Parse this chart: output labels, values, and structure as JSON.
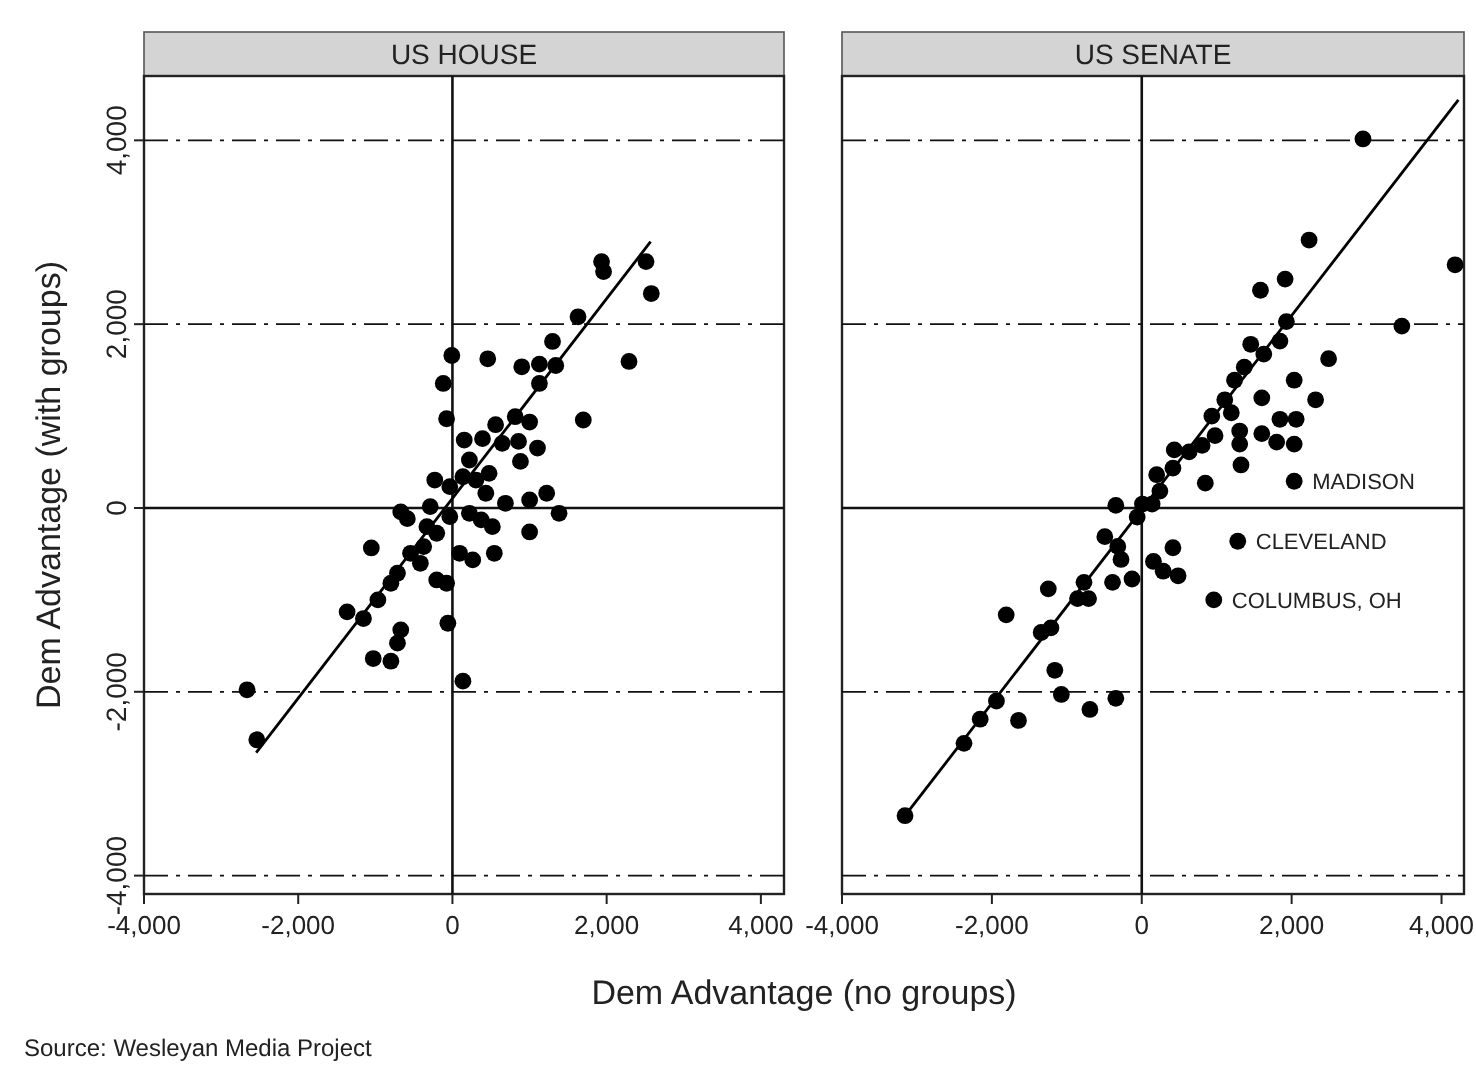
{
  "chart_data": [
    {
      "type": "scatter",
      "title": "US HOUSE",
      "xlabel": "Dem Advantage (no groups)",
      "ylabel": "Dem Advantage (with groups)",
      "xlim": [
        -4000,
        4300
      ],
      "ylim": [
        -4200,
        4700
      ],
      "xticks": [
        {
          "value": -4000,
          "label": "-4,000"
        },
        {
          "value": -2000,
          "label": "-2,000"
        },
        0,
        {
          "value": 2000,
          "label": "2,000"
        },
        {
          "value": 4000,
          "label": "4,000"
        }
      ],
      "yticks": [
        {
          "value": -4000,
          "label": "-4,000"
        },
        {
          "value": -2000,
          "label": "-2,000"
        },
        0,
        {
          "value": 2000,
          "label": "2,000"
        },
        {
          "value": 4000,
          "label": "4,000"
        }
      ],
      "marker": "circle",
      "ref_lines": [
        {
          "axis": "x",
          "value": 0
        },
        {
          "axis": "y",
          "value": 0
        },
        {
          "axis": "y",
          "value": 4000,
          "line_style": "dashed"
        },
        {
          "axis": "y",
          "value": 2000,
          "line_style": "dashed"
        },
        {
          "axis": "y",
          "value": -2000,
          "line_style": "dashed"
        },
        {
          "axis": "y",
          "value": -4000,
          "line_style": "dashed"
        }
      ],
      "annotations": [
        "Source: Wesleyan Media Project"
      ],
      "series": [
        {
          "color": "#000000",
          "x": [
            1934,
            1960,
            2511,
            2579,
            1629,
            2290,
            1298,
            -8,
            458,
            899,
            1128,
            1340,
            1128,
            -119,
            -76,
            1697,
            560,
            814,
            1001,
            857,
            882,
            1103,
            153,
            390,
            645,
            220,
            475,
            305,
            136,
            433,
            -229,
            -34,
            1222,
            1001,
            687,
            1383,
            1001,
            543,
            263,
            93,
            373,
            518,
            220,
            -34,
            -288,
            -670,
            -585,
            -331,
            -204,
            -373,
            -543,
            -416,
            -204,
            -76,
            -1052,
            -713,
            -798,
            -967,
            -1154,
            -1366,
            -670,
            -713,
            -1027,
            -798,
            -59,
            136,
            -2664,
            -2537
          ],
          "values": [
            2681,
            2572,
            2681,
            2333,
            2080,
            1594,
            1812,
            1659,
            1623,
            1536,
            1565,
            1550,
            1355,
            1355,
            971,
            957,
            906,
            993,
            935,
            724,
            507,
            652,
            739,
            754,
            703,
            522,
            377,
            304,
            340,
            160,
            304,
            232,
            160,
            87,
            51,
            -58,
            -261,
            -493,
            -565,
            -493,
            -130,
            -203,
            -58,
            -94,
            15,
            -43,
            -116,
            -203,
            -275,
            -420,
            -493,
            -602,
            -783,
            -819,
            -435,
            -710,
            -819,
            -1000,
            -1203,
            -1130,
            -1326,
            -1471,
            -1638,
            -1667,
            -1254,
            -1884,
            -1978,
            -2522
          ]
        },
        {
          "type": "line",
          "color": "#000000",
          "line_style": "solid",
          "marker": "none",
          "x": [
            -2545,
            2570
          ],
          "values": [
            -2661,
            2897
          ]
        }
      ]
    },
    {
      "type": "scatter",
      "title": "US SENATE",
      "xlim": [
        -4000,
        4300
      ],
      "ylim": [
        -4200,
        4700
      ],
      "xticks": [
        {
          "value": -4000,
          "label": "-4,000"
        },
        {
          "value": -2000,
          "label": "-2,000"
        },
        0,
        {
          "value": 2000,
          "label": "2,000"
        },
        {
          "value": 4000,
          "label": "4,000"
        }
      ],
      "yticks": [
        -4000,
        -2000,
        0,
        2000,
        4000
      ],
      "tick_labels": "x",
      "marker": "circle",
      "ref_lines": [
        {
          "axis": "x",
          "value": 0
        },
        {
          "axis": "y",
          "value": 0
        },
        {
          "axis": "y",
          "value": 4000,
          "line_style": "dashed"
        },
        {
          "axis": "y",
          "value": 2000,
          "line_style": "dashed"
        },
        {
          "axis": "y",
          "value": -2000,
          "line_style": "dashed"
        },
        {
          "axis": "y",
          "value": -4000,
          "line_style": "dashed"
        }
      ],
      "annotations": [
        {
          "text": "MADISON",
          "x": 2034,
          "y": 291
        },
        {
          "text": "CLEVELAND",
          "x": 1281,
          "y": -362
        },
        {
          "text": "COLUMBUS, OH",
          "x": 961,
          "y": -1000
        }
      ],
      "series": [
        {
          "color": "#000000",
          "x": [
            2952,
            4181,
            3471,
            2233,
            1913,
            1584,
            1930,
            2493,
            1844,
            1628,
            1454,
            2034,
            2320,
            1602,
            1368,
            1238,
            1108,
            1195,
            1844,
            2060,
            1602,
            1800,
            2034,
            1307,
            1307,
            978,
            1324,
            848,
            805,
            935,
            632,
            416,
            199,
            242,
            138,
            9,
            -61,
            -346,
            2034,
            1281,
            961,
            416,
            156,
            286,
            485,
            -130,
            -390,
            -493,
            -320,
            -277,
            -771,
            -857,
            -710,
            -1247,
            -1212,
            -1342,
            -1809,
            -1160,
            -1073,
            -692,
            -346,
            -1645,
            -1939,
            -2156,
            -2372,
            -3159,
            434
          ],
          "values": [
            4015,
            2646,
            1979,
            2915,
            2490,
            2369,
            2028,
            1624,
            1816,
            1674,
            1781,
            1390,
            1177,
            1198,
            1532,
            1390,
            1177,
            1036,
            965,
            965,
            809,
            716,
            695,
            837,
            695,
            787,
            468,
            270,
            681,
            1000,
            610,
            433,
            362,
            184,
            43,
            43,
            -99,
            28,
            291,
            -362,
            -1000,
            -433,
            -582,
            -688,
            -738,
            -773,
            -809,
            -312,
            -418,
            -560,
            -809,
            -986,
            -986,
            -880,
            -1305,
            -1355,
            -1163,
            -1766,
            -2029,
            -2192,
            -2071,
            -2312,
            -2100,
            -2298,
            -2561,
            -3348,
            632
          ]
        },
        {
          "type": "line",
          "color": "#000000",
          "line_style": "solid",
          "marker": "none",
          "x": [
            -3159,
            4225
          ],
          "values": [
            -3348,
            4441
          ]
        }
      ]
    }
  ]
}
